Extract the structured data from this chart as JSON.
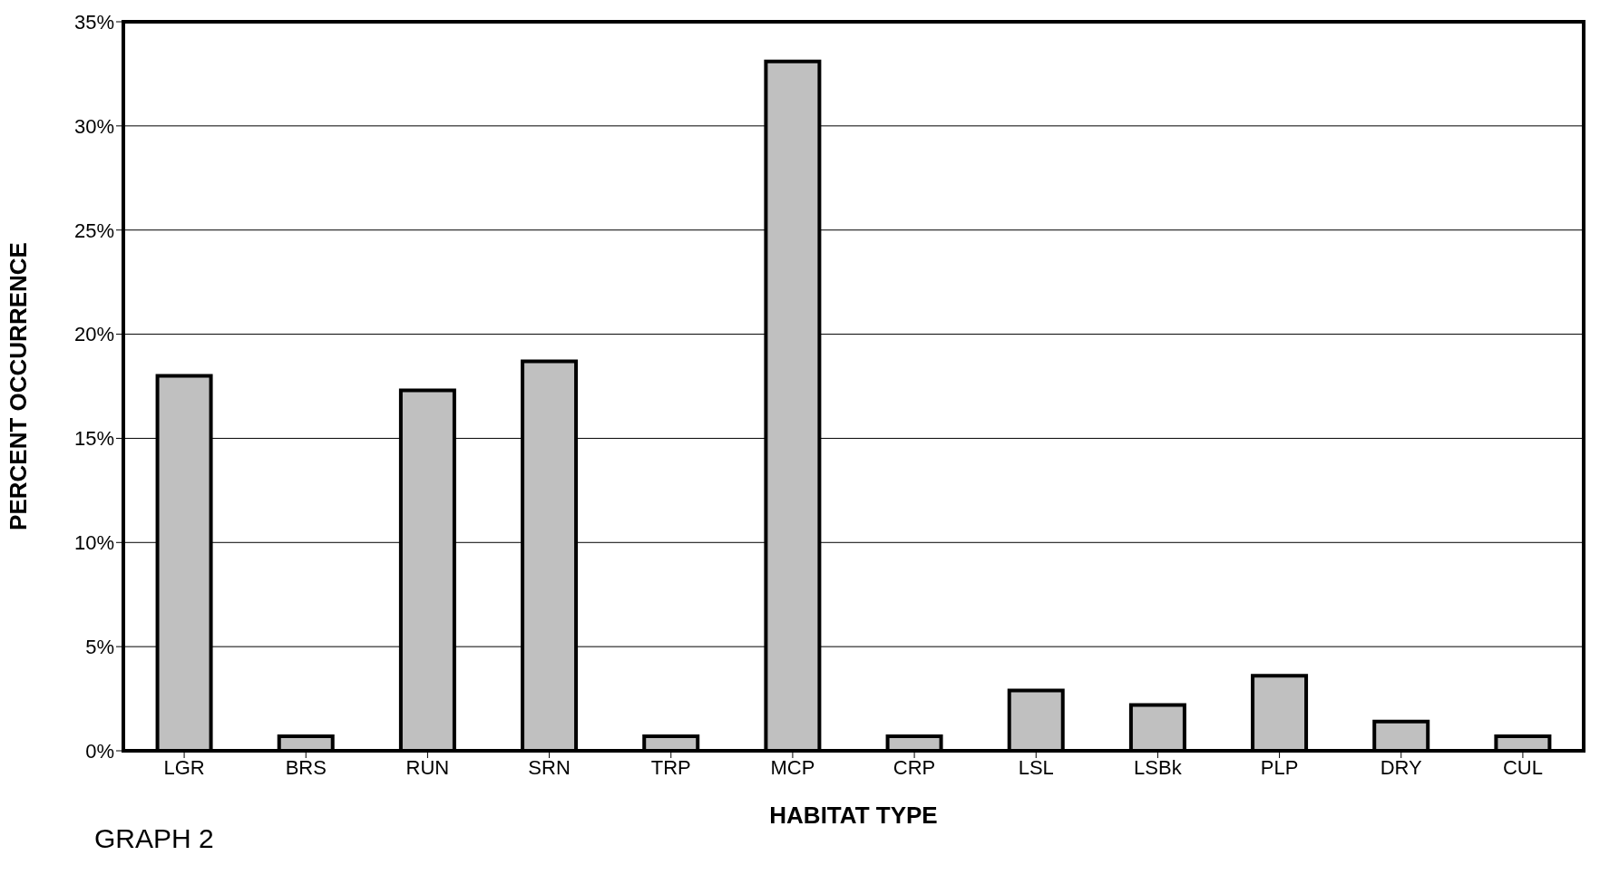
{
  "chart_data": {
    "type": "bar",
    "xlabel": "HABITAT TYPE",
    "ylabel": "PERCENT OCCURRENCE",
    "categories": [
      "LGR",
      "BRS",
      "RUN",
      "SRN",
      "TRP",
      "MCP",
      "CRP",
      "LSL",
      "LSBk",
      "PLP",
      "DRY",
      "CUL"
    ],
    "values": [
      18.0,
      0.7,
      17.3,
      18.7,
      0.7,
      33.1,
      0.7,
      2.9,
      2.2,
      3.6,
      1.4,
      0.7
    ],
    "color": "#c0c0c0",
    "ylim": [
      0,
      35
    ],
    "yticks": [
      {
        "value": 0,
        "label": "0%"
      },
      {
        "value": 5,
        "label": "5%"
      },
      {
        "value": 10,
        "label": "10%"
      },
      {
        "value": 15,
        "label": "15%"
      },
      {
        "value": 20,
        "label": "20%"
      },
      {
        "value": 25,
        "label": "25%"
      },
      {
        "value": 30,
        "label": "30%"
      },
      {
        "value": 35,
        "label": "35%"
      }
    ],
    "grid": "y",
    "annotations": [
      "GRAPH 2"
    ]
  }
}
